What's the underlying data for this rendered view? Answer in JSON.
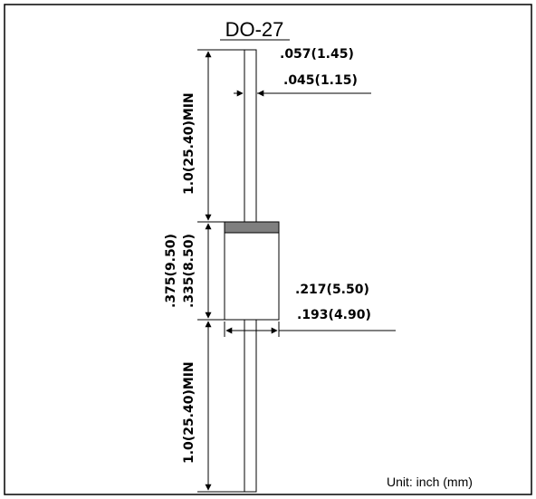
{
  "title": "DO-27",
  "lead_diameter": {
    "max": ".057(1.45)",
    "min": ".045(1.15)"
  },
  "lead_length_top": "1.0(25.40)MIN",
  "body_length": {
    "max": ".375(9.50)",
    "min": ".335(8.50)"
  },
  "body_diameter": {
    "max": ".217(5.50)",
    "min": ".193(4.90)"
  },
  "lead_length_bottom": "1.0(25.40)MIN",
  "unit_note": "Unit:  inch  (mm)",
  "colors": {
    "band": "#7f7f7f",
    "line": "#000000"
  }
}
